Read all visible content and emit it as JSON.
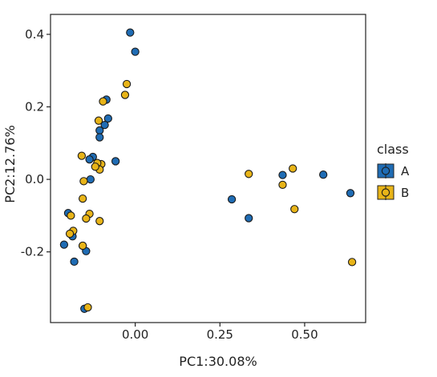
{
  "chart_data": {
    "type": "scatter",
    "title": "",
    "xlabel": "PC1:30.08%",
    "ylabel": "PC2:12.76%",
    "xlim": [
      -0.25,
      0.68
    ],
    "ylim": [
      -0.395,
      0.455
    ],
    "x_ticks": [
      0.0,
      0.25,
      0.5
    ],
    "x_tick_labels": [
      "0.00",
      "0.25",
      "0.50"
    ],
    "y_ticks": [
      -0.2,
      0.0,
      0.2,
      0.4
    ],
    "y_tick_labels": [
      "-0.2",
      "0.0",
      "0.2",
      "0.4"
    ],
    "grid": false,
    "legend": {
      "title": "class",
      "position": "right"
    },
    "series": [
      {
        "name": "A",
        "color": "#1f6cb4",
        "x": [
          -0.015,
          0.0,
          -0.085,
          -0.08,
          -0.09,
          -0.105,
          -0.105,
          -0.058,
          -0.125,
          -0.135,
          -0.132,
          -0.198,
          -0.19,
          -0.185,
          -0.21,
          -0.18,
          -0.155,
          -0.145,
          -0.15,
          0.285,
          0.335,
          0.435,
          0.555,
          0.635
        ],
        "y": [
          0.405,
          0.352,
          0.22,
          0.168,
          0.15,
          0.135,
          0.116,
          0.05,
          0.062,
          0.055,
          0.0,
          -0.093,
          -0.15,
          -0.157,
          -0.18,
          -0.227,
          -0.183,
          -0.198,
          -0.357,
          -0.055,
          -0.107,
          0.012,
          0.013,
          -0.038
        ]
      },
      {
        "name": "B",
        "color": "#e8b418",
        "x": [
          -0.025,
          -0.03,
          -0.095,
          -0.108,
          -0.158,
          -0.1,
          -0.112,
          -0.105,
          -0.118,
          -0.152,
          -0.155,
          -0.19,
          -0.135,
          -0.105,
          -0.145,
          -0.183,
          -0.193,
          -0.155,
          -0.14,
          0.335,
          0.465,
          0.435,
          0.47,
          0.64
        ],
        "y": [
          0.263,
          0.233,
          0.215,
          0.162,
          0.065,
          0.042,
          0.045,
          0.027,
          0.035,
          -0.005,
          -0.053,
          -0.1,
          -0.095,
          -0.115,
          -0.108,
          -0.142,
          -0.15,
          -0.183,
          -0.353,
          0.015,
          0.03,
          -0.015,
          -0.082,
          -0.228
        ]
      }
    ]
  }
}
